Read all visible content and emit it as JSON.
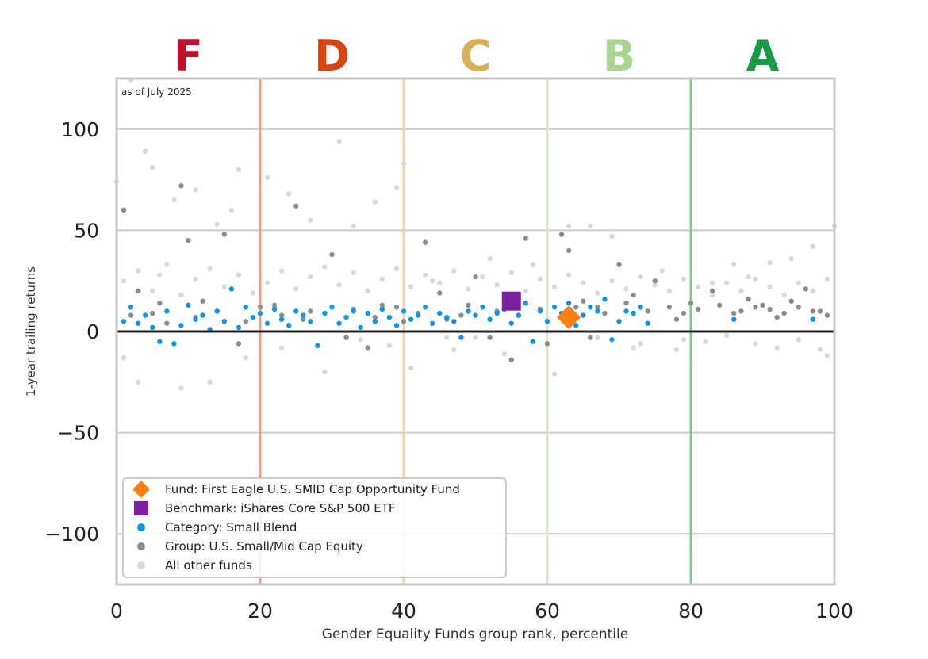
{
  "chart_data": {
    "type": "scatter",
    "title": "",
    "xlabel": "Gender Equality Funds group rank, percentile",
    "ylabel": "1-year trailing returns",
    "xlim": [
      0,
      100
    ],
    "ylim": [
      -125,
      125
    ],
    "xticks": [
      0,
      20,
      40,
      60,
      80,
      100
    ],
    "yticks": [
      100,
      50,
      0,
      -50,
      -100
    ],
    "grid": "horizontal",
    "annotation": "as of July 2025",
    "legend_position": "lower-left",
    "grade_bands": [
      {
        "grade": "F",
        "label_x": 10,
        "boundary": 20,
        "color": "#c0102a",
        "line_color": "#ef9d86"
      },
      {
        "grade": "D",
        "label_x": 30,
        "boundary": 40,
        "color": "#d9430f",
        "line_color": "#eed6a4"
      },
      {
        "grade": "C",
        "label_x": 50,
        "boundary": 60,
        "color": "#d8b057",
        "line_color": "#d4ebc7"
      },
      {
        "grade": "B",
        "label_x": 70,
        "boundary": 80,
        "color": "#a8d592",
        "line_color": "#7fcb98"
      },
      {
        "grade": "A",
        "label_x": 90,
        "boundary": 100,
        "color": "#179b47",
        "line_color": "#b6e0c5"
      }
    ],
    "series": [
      {
        "name": "Fund: First Eagle U.S. SMID Cap Opportunity Fund",
        "marker": "diamond",
        "color": "#ff7f0e",
        "points": [
          [
            63,
            7
          ]
        ]
      },
      {
        "name": "Benchmark: iShares Core S&P 500 ETF",
        "marker": "square",
        "color": "#7b1fa2",
        "points": [
          [
            55,
            15
          ]
        ]
      },
      {
        "name": "Category: Small Blend",
        "marker": "circle",
        "color": "#0a95e8",
        "points": [
          [
            1,
            5
          ],
          [
            2,
            12
          ],
          [
            3,
            4
          ],
          [
            4,
            8
          ],
          [
            5,
            2
          ],
          [
            6,
            -5
          ],
          [
            7,
            10
          ],
          [
            8,
            -6
          ],
          [
            9,
            3
          ],
          [
            10,
            13
          ],
          [
            11,
            6
          ],
          [
            12,
            8
          ],
          [
            13,
            1
          ],
          [
            14,
            10
          ],
          [
            15,
            5
          ],
          [
            16,
            21
          ],
          [
            17,
            2
          ],
          [
            18,
            12
          ],
          [
            19,
            7
          ],
          [
            20,
            9
          ],
          [
            21,
            4
          ],
          [
            22,
            11
          ],
          [
            23,
            6
          ],
          [
            24,
            3
          ],
          [
            25,
            10
          ],
          [
            26,
            8
          ],
          [
            27,
            5
          ],
          [
            28,
            -7
          ],
          [
            29,
            9
          ],
          [
            30,
            12
          ],
          [
            31,
            4
          ],
          [
            32,
            7
          ],
          [
            33,
            10
          ],
          [
            34,
            2
          ],
          [
            35,
            9
          ],
          [
            36,
            5
          ],
          [
            37,
            11
          ],
          [
            38,
            7
          ],
          [
            39,
            3
          ],
          [
            40,
            10
          ],
          [
            41,
            6
          ],
          [
            42,
            8
          ],
          [
            43,
            12
          ],
          [
            44,
            4
          ],
          [
            45,
            9
          ],
          [
            46,
            7
          ],
          [
            47,
            5
          ],
          [
            48,
            -3
          ],
          [
            49,
            10
          ],
          [
            50,
            8
          ],
          [
            51,
            12
          ],
          [
            52,
            6
          ],
          [
            53,
            9
          ],
          [
            54,
            11
          ],
          [
            55,
            4
          ],
          [
            56,
            8
          ],
          [
            57,
            14
          ],
          [
            58,
            -5
          ],
          [
            59,
            10
          ],
          [
            60,
            5
          ],
          [
            61,
            12
          ],
          [
            62,
            9
          ],
          [
            63,
            14
          ],
          [
            64,
            3
          ],
          [
            65,
            8
          ],
          [
            66,
            12
          ],
          [
            67,
            10
          ],
          [
            68,
            16
          ],
          [
            69,
            -4
          ],
          [
            70,
            5
          ],
          [
            71,
            10
          ],
          [
            72,
            9
          ],
          [
            73,
            12
          ],
          [
            74,
            4
          ],
          [
            86,
            6
          ],
          [
            97,
            6
          ]
        ]
      },
      {
        "name": "Group: U.S. Small/Mid Cap Equity",
        "marker": "circle",
        "color": "#8c8c8c",
        "points": [
          [
            1,
            60
          ],
          [
            3,
            20
          ],
          [
            5,
            9
          ],
          [
            7,
            4
          ],
          [
            9,
            72
          ],
          [
            10,
            45
          ],
          [
            12,
            15
          ],
          [
            15,
            48
          ],
          [
            17,
            -6
          ],
          [
            20,
            12
          ],
          [
            23,
            8
          ],
          [
            25,
            62
          ],
          [
            27,
            10
          ],
          [
            30,
            38
          ],
          [
            32,
            -3
          ],
          [
            35,
            -8
          ],
          [
            37,
            13
          ],
          [
            40,
            5
          ],
          [
            43,
            44
          ],
          [
            45,
            19
          ],
          [
            48,
            8
          ],
          [
            50,
            27
          ],
          [
            52,
            -3
          ],
          [
            55,
            -14
          ],
          [
            57,
            46
          ],
          [
            60,
            -6
          ],
          [
            62,
            48
          ],
          [
            63,
            40
          ],
          [
            65,
            15
          ],
          [
            66,
            -3
          ],
          [
            67,
            12
          ],
          [
            70,
            33
          ],
          [
            72,
            18
          ],
          [
            75,
            25
          ],
          [
            78,
            6
          ],
          [
            80,
            14
          ],
          [
            83,
            20
          ],
          [
            86,
            9
          ],
          [
            88,
            16
          ],
          [
            90,
            13
          ],
          [
            92,
            7
          ],
          [
            94,
            15
          ],
          [
            96,
            21
          ],
          [
            98,
            10
          ],
          [
            99,
            8
          ],
          [
            2,
            8
          ],
          [
            6,
            14
          ],
          [
            11,
            7
          ],
          [
            14,
            10
          ],
          [
            18,
            5
          ],
          [
            22,
            13
          ],
          [
            26,
            6
          ],
          [
            29,
            9
          ],
          [
            33,
            11
          ],
          [
            36,
            7
          ],
          [
            39,
            12
          ],
          [
            42,
            9
          ],
          [
            46,
            6
          ],
          [
            49,
            13
          ],
          [
            53,
            10
          ],
          [
            56,
            8
          ],
          [
            59,
            11
          ],
          [
            64,
            12
          ],
          [
            68,
            9
          ],
          [
            71,
            14
          ],
          [
            74,
            10
          ],
          [
            77,
            12
          ],
          [
            79,
            9
          ],
          [
            81,
            11
          ],
          [
            84,
            13
          ],
          [
            87,
            10
          ],
          [
            89,
            12
          ],
          [
            91,
            11
          ],
          [
            93,
            9
          ],
          [
            95,
            12
          ],
          [
            97,
            10
          ]
        ]
      },
      {
        "name": "All other funds",
        "marker": "circle",
        "color": "#d5dcd3",
        "points": [
          [
            2,
            124
          ],
          [
            4,
            89
          ],
          [
            5,
            81
          ],
          [
            8,
            65
          ],
          [
            11,
            70
          ],
          [
            14,
            53
          ],
          [
            16,
            60
          ],
          [
            17,
            80
          ],
          [
            21,
            76
          ],
          [
            24,
            68
          ],
          [
            27,
            55
          ],
          [
            31,
            94
          ],
          [
            33,
            52
          ],
          [
            36,
            64
          ],
          [
            40,
            83
          ],
          [
            39,
            71
          ],
          [
            44,
            25
          ],
          [
            47,
            -9
          ],
          [
            52,
            36
          ],
          [
            58,
            33
          ],
          [
            63,
            52
          ],
          [
            66,
            52
          ],
          [
            69,
            47
          ],
          [
            72,
            -8
          ],
          [
            76,
            30
          ],
          [
            79,
            -4
          ],
          [
            83,
            24
          ],
          [
            86,
            33
          ],
          [
            88,
            27
          ],
          [
            91,
            34
          ],
          [
            94,
            36
          ],
          [
            97,
            42
          ],
          [
            100,
            52
          ],
          [
            0,
            74
          ],
          [
            1,
            -13
          ],
          [
            3,
            -25
          ],
          [
            6,
            28
          ],
          [
            9,
            -28
          ],
          [
            13,
            -25
          ],
          [
            18,
            -13
          ],
          [
            23,
            -8
          ],
          [
            29,
            -20
          ],
          [
            34,
            -4
          ],
          [
            38,
            -7
          ],
          [
            41,
            -18
          ],
          [
            46,
            -3
          ],
          [
            50,
            -3
          ],
          [
            54,
            -11
          ],
          [
            61,
            -21
          ],
          [
            67,
            -3
          ],
          [
            73,
            -6
          ],
          [
            78,
            -9
          ],
          [
            82,
            -5
          ],
          [
            85,
            -2
          ],
          [
            89,
            -6
          ],
          [
            92,
            -8
          ],
          [
            95,
            -4
          ],
          [
            98,
            -9
          ],
          [
            99,
            -12
          ],
          [
            1,
            25
          ],
          [
            3,
            30
          ],
          [
            5,
            20
          ],
          [
            7,
            33
          ],
          [
            9,
            18
          ],
          [
            11,
            26
          ],
          [
            13,
            31
          ],
          [
            15,
            22
          ],
          [
            17,
            28
          ],
          [
            19,
            19
          ],
          [
            21,
            24
          ],
          [
            23,
            30
          ],
          [
            25,
            21
          ],
          [
            27,
            27
          ],
          [
            29,
            32
          ],
          [
            31,
            23
          ],
          [
            33,
            29
          ],
          [
            35,
            20
          ],
          [
            37,
            26
          ],
          [
            39,
            31
          ],
          [
            41,
            22
          ],
          [
            43,
            28
          ],
          [
            45,
            24
          ],
          [
            47,
            30
          ],
          [
            49,
            21
          ],
          [
            51,
            27
          ],
          [
            53,
            23
          ],
          [
            55,
            29
          ],
          [
            57,
            20
          ],
          [
            59,
            26
          ],
          [
            61,
            22
          ],
          [
            63,
            28
          ],
          [
            65,
            24
          ],
          [
            67,
            19
          ],
          [
            69,
            25
          ],
          [
            71,
            21
          ],
          [
            73,
            27
          ],
          [
            75,
            23
          ],
          [
            77,
            20
          ],
          [
            79,
            26
          ],
          [
            81,
            22
          ],
          [
            83,
            18
          ],
          [
            85,
            24
          ],
          [
            87,
            20
          ],
          [
            89,
            26
          ],
          [
            91,
            22
          ],
          [
            93,
            18
          ],
          [
            95,
            24
          ],
          [
            97,
            20
          ],
          [
            99,
            26
          ]
        ]
      }
    ]
  }
}
